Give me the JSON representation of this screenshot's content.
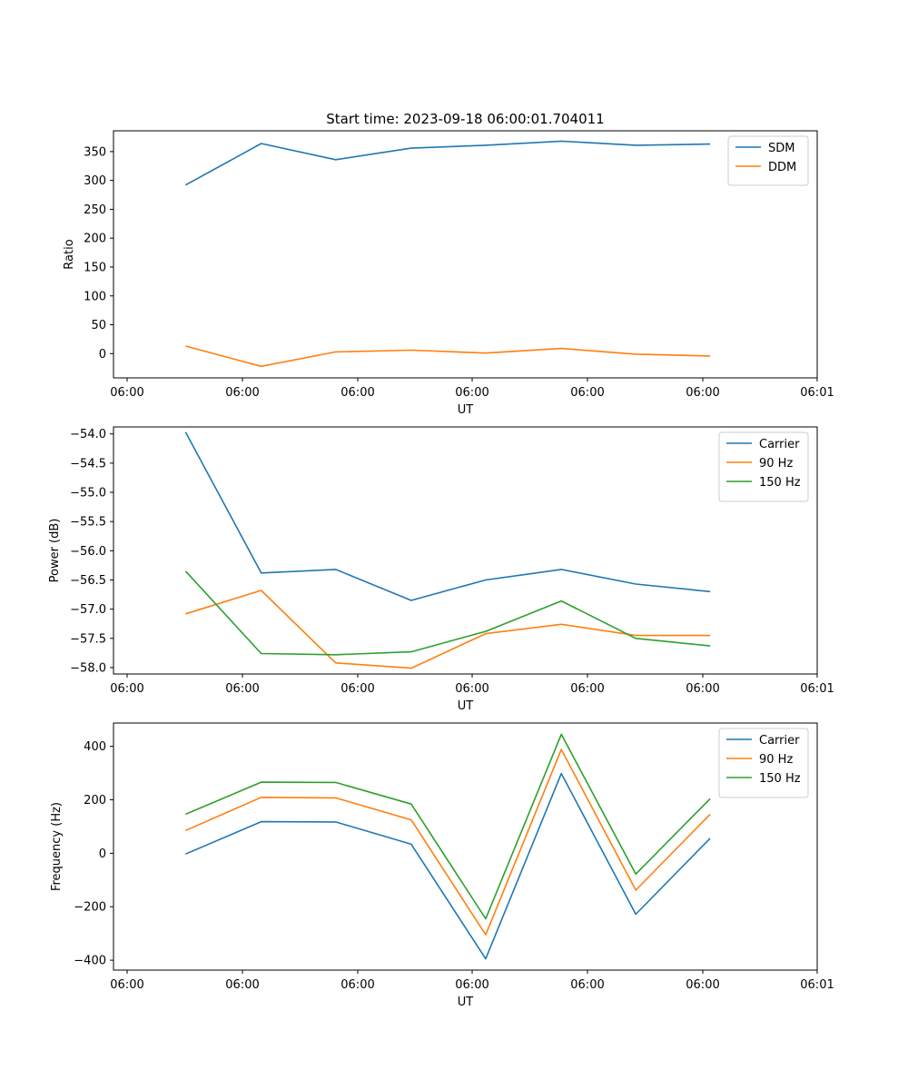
{
  "chart_data": [
    {
      "type": "line",
      "title": "Start time: 2023-09-18 06:00:01.704011",
      "xlabel": "UT",
      "ylabel": "Ratio",
      "x_tick_labels": [
        "06:00",
        "06:00",
        "06:00",
        "06:00",
        "06:00",
        "06:00",
        "06:01"
      ],
      "xlim": [
        -0.12,
        5.93
      ],
      "x": [
        0.5,
        1.15,
        1.79,
        2.44,
        3.08,
        3.73,
        4.37,
        5.01
      ],
      "ylim": [
        -42,
        386
      ],
      "y_ticks": [
        0,
        50,
        100,
        150,
        200,
        250,
        300,
        350
      ],
      "y_tick_labels": [
        "0",
        "50",
        "100",
        "150",
        "200",
        "250",
        "300",
        "350"
      ],
      "legend_position": "top-right",
      "series": [
        {
          "name": "SDM",
          "color": "#1f77b4",
          "values": [
            292,
            364,
            336,
            356,
            361,
            368,
            361,
            363
          ]
        },
        {
          "name": "DDM",
          "color": "#ff7f0e",
          "values": [
            13,
            -22,
            3,
            6,
            1,
            9,
            -1,
            -4
          ]
        }
      ]
    },
    {
      "type": "line",
      "title": "",
      "xlabel": "UT",
      "ylabel": "Power (dB)",
      "x_tick_labels": [
        "06:00",
        "06:00",
        "06:00",
        "06:00",
        "06:00",
        "06:00",
        "06:01"
      ],
      "xlim": [
        -0.12,
        5.93
      ],
      "x": [
        0.5,
        1.15,
        1.79,
        2.44,
        3.08,
        3.73,
        4.37,
        5.01
      ],
      "ylim": [
        -58.11,
        -53.88
      ],
      "y_ticks": [
        -58.0,
        -57.5,
        -57.0,
        -56.5,
        -56.0,
        -55.5,
        -55.0,
        -54.5,
        -54.0
      ],
      "y_tick_labels": [
        "−58.0",
        "−57.5",
        "−57.0",
        "−56.5",
        "−56.0",
        "−55.5",
        "−55.0",
        "−54.5",
        "−54.0"
      ],
      "legend_position": "top-right",
      "series": [
        {
          "name": "Carrier",
          "color": "#1f77b4",
          "values": [
            -53.97,
            -56.38,
            -56.32,
            -56.85,
            -56.5,
            -56.32,
            -56.57,
            -56.7
          ]
        },
        {
          "name": "90 Hz",
          "color": "#ff7f0e",
          "values": [
            -57.08,
            -56.68,
            -57.92,
            -58.01,
            -57.42,
            -57.26,
            -57.45,
            -57.45
          ]
        },
        {
          "name": "150 Hz",
          "color": "#2ca02c",
          "values": [
            -56.35,
            -57.76,
            -57.78,
            -57.73,
            -57.38,
            -56.86,
            -57.5,
            -57.63
          ]
        }
      ]
    },
    {
      "type": "line",
      "title": "",
      "xlabel": "UT",
      "ylabel": "Frequency (Hz)",
      "x_tick_labels": [
        "06:00",
        "06:00",
        "06:00",
        "06:00",
        "06:00",
        "06:00",
        "06:01"
      ],
      "xlim": [
        -0.12,
        5.93
      ],
      "x": [
        0.5,
        1.15,
        1.79,
        2.44,
        3.08,
        3.73,
        4.37,
        5.01
      ],
      "ylim": [
        -437,
        487
      ],
      "y_ticks": [
        -400,
        -200,
        0,
        200,
        400
      ],
      "y_tick_labels": [
        "−400",
        "−200",
        "0",
        "200",
        "400"
      ],
      "legend_position": "top-right",
      "series": [
        {
          "name": "Carrier",
          "color": "#1f77b4",
          "values": [
            -3,
            118,
            117,
            34,
            -395,
            298,
            -228,
            56
          ]
        },
        {
          "name": "90 Hz",
          "color": "#ff7f0e",
          "values": [
            85,
            209,
            207,
            125,
            -305,
            388,
            -138,
            146
          ]
        },
        {
          "name": "150 Hz",
          "color": "#2ca02c",
          "values": [
            146,
            266,
            265,
            184,
            -245,
            445,
            -78,
            204
          ]
        }
      ]
    }
  ]
}
